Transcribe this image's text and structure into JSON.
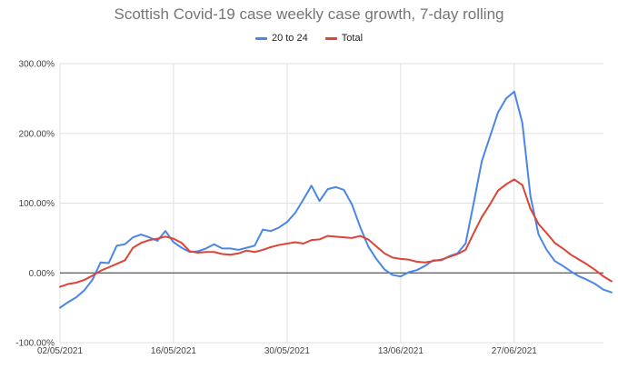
{
  "chart_data": {
    "type": "line",
    "title": "Scottish Covid-19 case weekly case growth, 7-day rolling",
    "xlabel": "",
    "ylabel": "",
    "ylim": [
      -100,
      300
    ],
    "y_ticks": [
      -100,
      0,
      100,
      200,
      300
    ],
    "y_tick_labels": [
      "-100.00%",
      "0.00%",
      "100.00%",
      "200.00%",
      "300.00%"
    ],
    "x_tick_labels": [
      "02/05/2021",
      "16/05/2021",
      "30/05/2021",
      "13/06/2021",
      "27/06/2021"
    ],
    "x_start_label": "02/05/2021",
    "x_ticks": [
      0,
      14,
      28,
      42,
      56
    ],
    "x_range": [
      0,
      67
    ],
    "grid": true,
    "legend_position": "top",
    "series": [
      {
        "name": "20 to 24",
        "color": "#4a86e8",
        "values": [
          -50,
          -42,
          -35,
          -25,
          -10,
          15,
          14,
          39,
          41,
          51,
          55,
          51,
          46,
          60,
          44,
          36,
          30,
          31,
          35,
          41,
          35,
          35,
          33,
          36,
          39,
          62,
          60,
          65,
          73,
          86,
          105,
          125,
          103,
          120,
          123,
          119,
          98,
          66,
          38,
          20,
          5,
          -3,
          -5,
          1,
          4,
          10,
          18,
          18,
          24,
          28,
          42,
          100,
          160,
          195,
          230,
          250,
          260,
          215,
          110,
          55,
          33,
          17,
          10,
          2,
          -5,
          -10,
          -16,
          -24,
          -28
        ]
      },
      {
        "name": "Total",
        "color": "#db4437",
        "values": [
          -20,
          -16,
          -14,
          -10,
          -4,
          3,
          8,
          13,
          18,
          36,
          43,
          47,
          49,
          52,
          49,
          43,
          31,
          29,
          30,
          30,
          27,
          26,
          28,
          32,
          30,
          33,
          37,
          40,
          42,
          44,
          42,
          47,
          48,
          53,
          52,
          51,
          50,
          53,
          48,
          38,
          28,
          22,
          20,
          19,
          16,
          15,
          17,
          19,
          23,
          27,
          33,
          57,
          80,
          98,
          118,
          127,
          134,
          126,
          92,
          70,
          57,
          43,
          35,
          26,
          19,
          12,
          4,
          -5,
          -12
        ]
      }
    ]
  }
}
